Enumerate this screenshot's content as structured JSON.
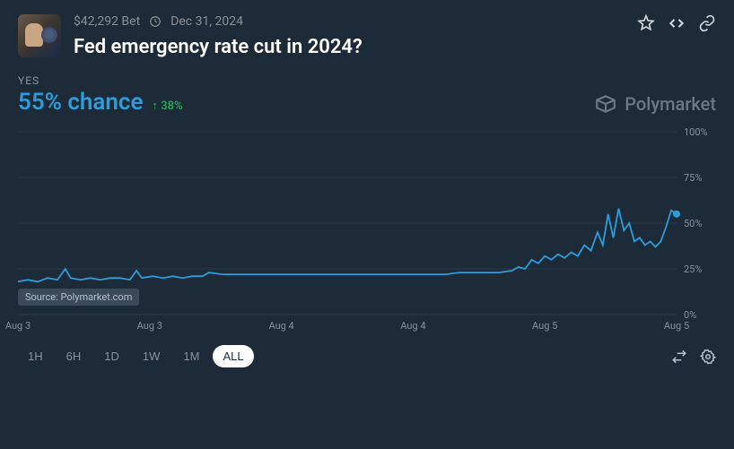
{
  "header": {
    "bet_amount": "$42,292 Bet",
    "date": "Dec 31, 2024",
    "title": "Fed emergency rate cut in 2024?"
  },
  "summary": {
    "yes_label": "YES",
    "chance": "55% chance",
    "change": "38%"
  },
  "brand": {
    "name": "Polymarket"
  },
  "chart": {
    "type": "line",
    "ylim": [
      0,
      100
    ],
    "yticks": [
      0,
      25,
      50,
      75,
      100
    ],
    "ytick_labels": [
      "0%",
      "25%",
      "50%",
      "75%",
      "100%"
    ],
    "xticks": [
      0,
      0.2,
      0.4,
      0.6,
      0.8,
      1.0
    ],
    "xtick_labels": [
      "Aug 3",
      "Aug 3",
      "Aug 4",
      "Aug 4",
      "Aug 5",
      "Aug 5"
    ],
    "line_color": "#2d9cdb",
    "line_width": 1.8,
    "grid_color": "#2a3a4a",
    "background_color": "#1d2b39",
    "label_color": "#8a9299",
    "label_fontsize": 11,
    "end_marker": {
      "shape": "circle",
      "size": 4,
      "color": "#2d9cdb"
    },
    "source_label": "Source: Polymarket.com",
    "series": [
      {
        "x": 0.0,
        "y": 18
      },
      {
        "x": 0.015,
        "y": 19
      },
      {
        "x": 0.03,
        "y": 18
      },
      {
        "x": 0.045,
        "y": 20
      },
      {
        "x": 0.06,
        "y": 19
      },
      {
        "x": 0.072,
        "y": 25
      },
      {
        "x": 0.08,
        "y": 20
      },
      {
        "x": 0.095,
        "y": 19
      },
      {
        "x": 0.11,
        "y": 20
      },
      {
        "x": 0.125,
        "y": 19
      },
      {
        "x": 0.14,
        "y": 20
      },
      {
        "x": 0.155,
        "y": 20
      },
      {
        "x": 0.17,
        "y": 19
      },
      {
        "x": 0.18,
        "y": 24
      },
      {
        "x": 0.188,
        "y": 20
      },
      {
        "x": 0.205,
        "y": 21
      },
      {
        "x": 0.22,
        "y": 20
      },
      {
        "x": 0.235,
        "y": 21
      },
      {
        "x": 0.25,
        "y": 20
      },
      {
        "x": 0.265,
        "y": 21
      },
      {
        "x": 0.28,
        "y": 21
      },
      {
        "x": 0.29,
        "y": 23
      },
      {
        "x": 0.31,
        "y": 22
      },
      {
        "x": 0.33,
        "y": 22
      },
      {
        "x": 0.35,
        "y": 22
      },
      {
        "x": 0.37,
        "y": 22
      },
      {
        "x": 0.39,
        "y": 22
      },
      {
        "x": 0.41,
        "y": 22
      },
      {
        "x": 0.43,
        "y": 22
      },
      {
        "x": 0.45,
        "y": 22
      },
      {
        "x": 0.47,
        "y": 22
      },
      {
        "x": 0.49,
        "y": 22
      },
      {
        "x": 0.51,
        "y": 22
      },
      {
        "x": 0.53,
        "y": 22
      },
      {
        "x": 0.55,
        "y": 22
      },
      {
        "x": 0.57,
        "y": 22
      },
      {
        "x": 0.59,
        "y": 22
      },
      {
        "x": 0.61,
        "y": 22
      },
      {
        "x": 0.63,
        "y": 22
      },
      {
        "x": 0.65,
        "y": 22
      },
      {
        "x": 0.67,
        "y": 23
      },
      {
        "x": 0.69,
        "y": 23
      },
      {
        "x": 0.71,
        "y": 23
      },
      {
        "x": 0.73,
        "y": 23
      },
      {
        "x": 0.75,
        "y": 24
      },
      {
        "x": 0.76,
        "y": 26
      },
      {
        "x": 0.77,
        "y": 25
      },
      {
        "x": 0.78,
        "y": 30
      },
      {
        "x": 0.79,
        "y": 28
      },
      {
        "x": 0.8,
        "y": 32
      },
      {
        "x": 0.81,
        "y": 30
      },
      {
        "x": 0.82,
        "y": 33
      },
      {
        "x": 0.83,
        "y": 31
      },
      {
        "x": 0.84,
        "y": 34
      },
      {
        "x": 0.85,
        "y": 32
      },
      {
        "x": 0.86,
        "y": 38
      },
      {
        "x": 0.87,
        "y": 35
      },
      {
        "x": 0.88,
        "y": 45
      },
      {
        "x": 0.888,
        "y": 38
      },
      {
        "x": 0.896,
        "y": 55
      },
      {
        "x": 0.904,
        "y": 42
      },
      {
        "x": 0.912,
        "y": 58
      },
      {
        "x": 0.92,
        "y": 46
      },
      {
        "x": 0.928,
        "y": 50
      },
      {
        "x": 0.936,
        "y": 40
      },
      {
        "x": 0.944,
        "y": 42
      },
      {
        "x": 0.952,
        "y": 38
      },
      {
        "x": 0.96,
        "y": 40
      },
      {
        "x": 0.968,
        "y": 37
      },
      {
        "x": 0.976,
        "y": 40
      },
      {
        "x": 0.984,
        "y": 48
      },
      {
        "x": 0.992,
        "y": 57
      },
      {
        "x": 1.0,
        "y": 55
      }
    ]
  },
  "ranges": {
    "options": [
      "1H",
      "6H",
      "1D",
      "1W",
      "1M",
      "ALL"
    ],
    "active": "ALL"
  }
}
